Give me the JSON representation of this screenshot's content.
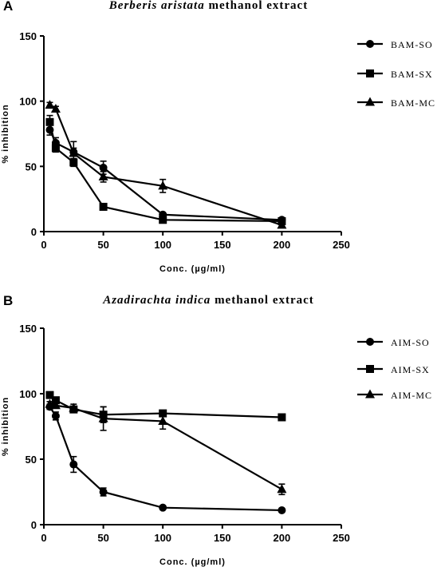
{
  "chart_data": [
    {
      "panel": "A",
      "type": "line",
      "title_italic": "Berberis aristata",
      "title_rest": "methanol extract",
      "xlabel": "Conc. (µg/ml)",
      "ylabel": "% inhibition",
      "xlim": [
        0,
        250
      ],
      "ylim": [
        0,
        150
      ],
      "xticks": [
        0,
        50,
        100,
        150,
        200,
        250
      ],
      "yticks": [
        0,
        50,
        100,
        150
      ],
      "grid": false,
      "legend_position": "right",
      "x": [
        5,
        10,
        25,
        50,
        100,
        200
      ],
      "series": [
        {
          "name": "BAM-SO",
          "marker": "circle",
          "values": [
            78,
            68,
            61,
            49,
            13,
            9
          ],
          "error": [
            4,
            4,
            3,
            5,
            1,
            1
          ]
        },
        {
          "name": "BAM-SX",
          "marker": "square",
          "values": [
            84,
            64,
            53,
            19,
            9,
            8
          ],
          "error": [
            5,
            3,
            3,
            1,
            1,
            1
          ]
        },
        {
          "name": "BAM-MC",
          "marker": "triangle",
          "values": [
            97,
            94,
            60,
            42,
            35,
            5
          ],
          "error": [
            2,
            2,
            9,
            4,
            5,
            1
          ]
        }
      ]
    },
    {
      "panel": "B",
      "type": "line",
      "title_italic": "Azadirachta indica",
      "title_rest": "methanol extract",
      "xlabel": "Conc. (µg/ml)",
      "ylabel": "% inhibition",
      "xlim": [
        0,
        250
      ],
      "ylim": [
        0,
        150
      ],
      "xticks": [
        0,
        50,
        100,
        150,
        200,
        250
      ],
      "yticks": [
        0,
        50,
        100,
        150
      ],
      "grid": false,
      "legend_position": "right",
      "x": [
        5,
        10,
        25,
        50,
        100,
        200
      ],
      "series": [
        {
          "name": "AIM-SO",
          "marker": "circle",
          "values": [
            90,
            83,
            46,
            25,
            13,
            11
          ],
          "error": [
            2,
            3,
            6,
            3,
            1,
            1
          ]
        },
        {
          "name": "AIM-SX",
          "marker": "square",
          "values": [
            99,
            95,
            88,
            84,
            85,
            82
          ],
          "error": [
            1,
            2,
            2,
            6,
            1,
            1
          ]
        },
        {
          "name": "AIM-MC",
          "marker": "triangle",
          "values": [
            92,
            91,
            89,
            81,
            79,
            27
          ],
          "error": [
            2,
            2,
            3,
            9,
            6,
            4
          ]
        }
      ]
    }
  ]
}
